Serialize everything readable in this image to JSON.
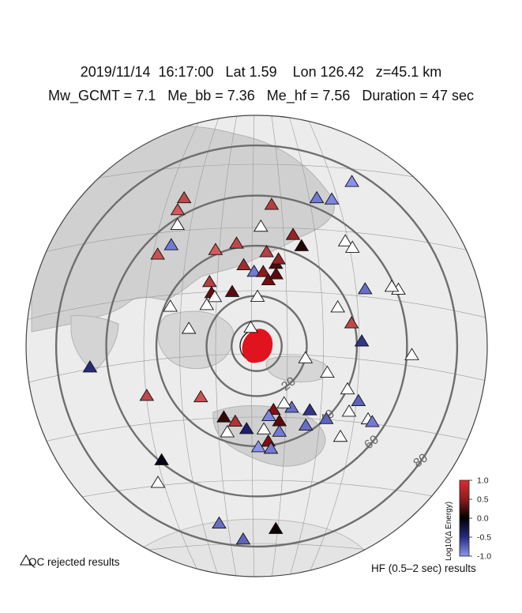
{
  "header": {
    "line1": "2019/11/14  16:17:00   Lat 1.59    Lon 126.42   z=45.1 km",
    "line2": "Mw_GCMT = 7.1   Me_bb = 7.36   Me_hf = 7.56   Duration = 47 sec"
  },
  "map": {
    "type": "azimuthal-equidistant",
    "center": {
      "lat": 1.59,
      "lon": 126.42
    },
    "distance_rings_deg": [
      10,
      20,
      40,
      60,
      80
    ],
    "ring_labels": [
      "20",
      "40",
      "60",
      "80"
    ],
    "colors": {
      "ring": "#6e6e6e",
      "land": "#cfcfcf",
      "ocean": "#ededed",
      "beachball": "#e0141e"
    }
  },
  "colorbar": {
    "title": "Log10(Δ Energy)",
    "ticks": [
      "1.0",
      "0.5",
      "0.0",
      "-0.5",
      "-1.0"
    ],
    "range": [
      -1.0,
      1.0
    ],
    "colors": {
      "high": "#d9262c",
      "mid": "#000000",
      "low": "#3a48c8"
    }
  },
  "legend": {
    "qc_label": "QC rejected results",
    "hf_label": "HF (0.5–2 sec) results"
  },
  "stations": [
    {
      "az": 6,
      "d": 57,
      "v": 0.75
    },
    {
      "az": 22,
      "d": 64,
      "v": -0.9
    },
    {
      "az": 30,
      "d": 76,
      "v": -1.0
    },
    {
      "az": 27,
      "d": 66,
      "v": -0.95
    },
    {
      "az": 2,
      "d": 48,
      "v": null
    },
    {
      "az": 18,
      "d": 47,
      "v": 0.6
    },
    {
      "az": 24,
      "d": 44,
      "v": 0.15
    },
    {
      "az": 40,
      "d": 55,
      "v": null
    },
    {
      "az": 44,
      "d": 55,
      "v": null
    },
    {
      "az": 334,
      "d": 66,
      "v": 0.8
    },
    {
      "az": 330,
      "d": 63,
      "v": 0.9
    },
    {
      "az": 327,
      "d": 58,
      "v": null
    },
    {
      "az": 320,
      "d": 53,
      "v": -0.9
    },
    {
      "az": 313,
      "d": 54,
      "v": 0.85
    },
    {
      "az": 337,
      "d": 42,
      "v": 0.9
    },
    {
      "az": 349,
      "d": 42,
      "v": 0.8
    },
    {
      "az": 6,
      "d": 38,
      "v": 0.75
    },
    {
      "az": 13,
      "d": 34,
      "v": 0.3
    },
    {
      "az": 14,
      "d": 36,
      "v": 0.6
    },
    {
      "az": 351,
      "d": 33,
      "v": 0.65
    },
    {
      "az": 358,
      "d": 30,
      "v": -0.9
    },
    {
      "az": 5,
      "d": 30,
      "v": 0.55
    },
    {
      "az": 10,
      "d": 27,
      "v": 0.45
    },
    {
      "az": 15,
      "d": 30,
      "v": 0.35
    },
    {
      "az": 324,
      "d": 32,
      "v": 0.75
    },
    {
      "az": 336,
      "d": 24,
      "v": 0.35
    },
    {
      "az": 320,
      "d": 28,
      "v": 0.4
    },
    {
      "az": 320,
      "d": 26,
      "v": null
    },
    {
      "az": 310,
      "d": 26,
      "v": null
    },
    {
      "az": 1,
      "d": 20,
      "v": null
    },
    {
      "az": 62,
      "d": 49,
      "v": -0.85
    },
    {
      "az": 68,
      "d": 61,
      "v": null
    },
    {
      "az": 66,
      "d": 59,
      "v": null
    },
    {
      "az": 64,
      "d": 36,
      "v": null
    },
    {
      "az": 76,
      "d": 39,
      "v": 0.8
    },
    {
      "az": 87,
      "d": 42,
      "v": -0.6
    },
    {
      "az": 93,
      "d": 62,
      "v": null
    },
    {
      "az": 103,
      "d": 20,
      "v": null
    },
    {
      "az": 110,
      "d": 30,
      "v": null
    },
    {
      "az": 115,
      "d": 40,
      "v": null
    },
    {
      "az": 125,
      "d": 45,
      "v": null
    },
    {
      "az": 118,
      "d": 46,
      "v": -0.8
    },
    {
      "az": 123,
      "d": 53,
      "v": null
    },
    {
      "az": 123,
      "d": 55,
      "v": -0.9
    },
    {
      "az": 137,
      "d": 49,
      "v": null
    },
    {
      "az": 136,
      "d": 40,
      "v": -0.8
    },
    {
      "az": 140,
      "d": 33,
      "v": -0.6
    },
    {
      "az": 150,
      "d": 28,
      "v": -0.85
    },
    {
      "az": 163,
      "d": 31,
      "v": 0.35
    },
    {
      "az": 165,
      "d": 26,
      "v": 0.5
    },
    {
      "az": 170,
      "d": 28,
      "v": -0.95
    },
    {
      "az": 196,
      "d": 31,
      "v": 0.7
    },
    {
      "az": 205,
      "d": 31,
      "v": 0.2
    },
    {
      "az": 175,
      "d": 33,
      "v": null
    },
    {
      "az": 187,
      "d": 33,
      "v": -0.5
    },
    {
      "az": 199,
      "d": 36,
      "v": null
    },
    {
      "az": 165,
      "d": 35,
      "v": -0.9
    },
    {
      "az": 173,
      "d": 38,
      "v": 0.5
    },
    {
      "az": 148,
      "d": 37,
      "v": -0.85
    },
    {
      "az": 179,
      "d": 40,
      "v": -1.0
    },
    {
      "az": 172,
      "d": 41,
      "v": -0.9
    },
    {
      "az": 228,
      "d": 30,
      "v": 0.85
    },
    {
      "az": 246,
      "d": 48,
      "v": 0.8
    },
    {
      "az": 263,
      "d": 67,
      "v": -0.55
    },
    {
      "az": 220,
      "d": 59,
      "v": -0.1
    },
    {
      "az": 216,
      "d": 67,
      "v": null
    },
    {
      "az": 192,
      "d": 72,
      "v": -0.85
    },
    {
      "az": 174,
      "d": 73,
      "v": 0.05
    },
    {
      "az": 184,
      "d": 77,
      "v": -0.8
    },
    {
      "az": 295,
      "d": 38,
      "v": null
    },
    {
      "az": 285,
      "d": 28,
      "v": null
    },
    {
      "az": 343,
      "d": 8,
      "v": null
    },
    {
      "az": 154,
      "d": 25,
      "v": null
    }
  ]
}
